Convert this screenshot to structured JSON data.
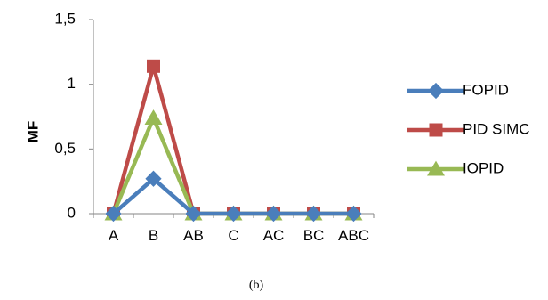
{
  "chart_data": {
    "type": "line",
    "categories": [
      "A",
      "B",
      "AB",
      "C",
      "AC",
      "BC",
      "ABC"
    ],
    "series": [
      {
        "name": "FOPID",
        "values": [
          0,
          0.27,
          0,
          0,
          0,
          0,
          0
        ],
        "color": "#4A7EBB",
        "marker": "diamond"
      },
      {
        "name": "PID SIMC",
        "values": [
          0,
          1.14,
          0,
          0,
          0,
          0,
          0
        ],
        "color": "#BE4B48",
        "marker": "square"
      },
      {
        "name": "IOPID",
        "values": [
          0,
          0.74,
          0,
          0,
          0,
          0,
          0
        ],
        "color": "#98B954",
        "marker": "triangle"
      }
    ],
    "yticks": [
      "0",
      "0,5",
      "1",
      "1,5"
    ],
    "ytick_values": [
      0,
      0.5,
      1,
      1.5
    ],
    "ylim": [
      0,
      1.5
    ],
    "ylabel": "MF",
    "xlabel": "",
    "caption": "(b)",
    "grid": false,
    "legend_position": "right"
  }
}
